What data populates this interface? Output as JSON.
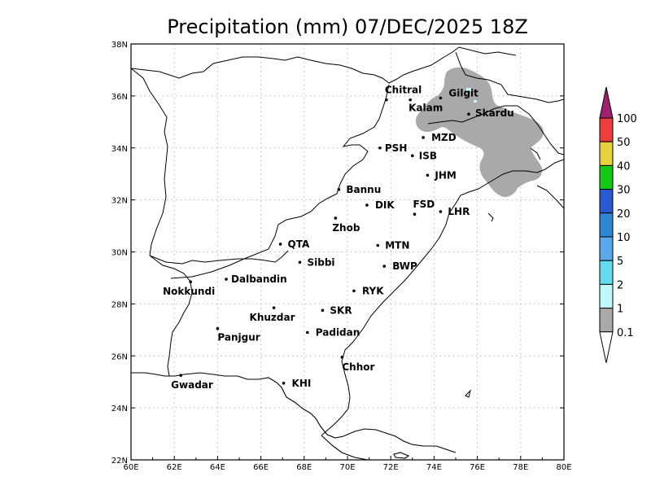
{
  "title": "Precipitation (mm) 07/DEC/2025 18Z",
  "colors": {
    "precip_shade": "#a9a9a9",
    "precip_light": "#bff9fb",
    "grid": "#b8b8b8"
  },
  "map": {
    "lon_range": [
      60,
      80
    ],
    "lat_range": [
      22,
      38
    ],
    "grid_step": 2,
    "grid": "dotted"
  },
  "x_ticks": [
    "60E",
    "62E",
    "64E",
    "66E",
    "68E",
    "70E",
    "72E",
    "74E",
    "76E",
    "78E",
    "80E"
  ],
  "y_ticks": [
    "22N",
    "24N",
    "26N",
    "28N",
    "30N",
    "32N",
    "34N",
    "36N",
    "38N"
  ],
  "cities": [
    {
      "name": "Chitral",
      "lon": 71.8,
      "lat": 35.85
    },
    {
      "name": "Gilgit",
      "lon": 74.3,
      "lat": 35.92
    },
    {
      "name": "Kalam",
      "lon": 72.9,
      "lat": 35.85
    },
    {
      "name": "Skardu",
      "lon": 75.6,
      "lat": 35.3
    },
    {
      "name": "MZD",
      "lon": 73.5,
      "lat": 34.4
    },
    {
      "name": "PSH",
      "lon": 71.5,
      "lat": 34.0
    },
    {
      "name": "ISB",
      "lon": 73.0,
      "lat": 33.7
    },
    {
      "name": "JHM",
      "lon": 73.7,
      "lat": 32.95
    },
    {
      "name": "Bannu",
      "lon": 69.6,
      "lat": 32.4
    },
    {
      "name": "DIK",
      "lon": 70.9,
      "lat": 31.8
    },
    {
      "name": "FSD",
      "lon": 73.1,
      "lat": 31.45
    },
    {
      "name": "LHR",
      "lon": 74.3,
      "lat": 31.55
    },
    {
      "name": "Zhob",
      "lon": 69.45,
      "lat": 31.3
    },
    {
      "name": "QTA",
      "lon": 66.9,
      "lat": 30.3
    },
    {
      "name": "MTN",
      "lon": 71.4,
      "lat": 30.25
    },
    {
      "name": "Sibbi",
      "lon": 67.8,
      "lat": 29.6
    },
    {
      "name": "BWP",
      "lon": 71.7,
      "lat": 29.45
    },
    {
      "name": "Nokkundi",
      "lon": 62.75,
      "lat": 28.85
    },
    {
      "name": "Dalbandin",
      "lon": 64.4,
      "lat": 28.95
    },
    {
      "name": "RYK",
      "lon": 70.3,
      "lat": 28.5
    },
    {
      "name": "Khuzdar",
      "lon": 66.6,
      "lat": 27.85
    },
    {
      "name": "SKR",
      "lon": 68.85,
      "lat": 27.75
    },
    {
      "name": "Panjgur",
      "lon": 64.0,
      "lat": 27.05
    },
    {
      "name": "Padidan",
      "lon": 68.15,
      "lat": 26.9
    },
    {
      "name": "Chhor",
      "lon": 69.75,
      "lat": 25.95
    },
    {
      "name": "Gwadar",
      "lon": 62.3,
      "lat": 25.25
    },
    {
      "name": "KHI",
      "lon": 67.05,
      "lat": 24.95
    }
  ],
  "colorbar": {
    "labels": [
      "100",
      "50",
      "40",
      "30",
      "20",
      "10",
      "5",
      "2",
      "1",
      "0.1"
    ],
    "colors": [
      "#a0206e",
      "#f03c3c",
      "#e6d23c",
      "#14c814",
      "#2a5ad2",
      "#2d87d6",
      "#5aaaeb",
      "#64dcf0",
      "#bff9fb",
      "#a9a9a9",
      "#ffffff"
    ]
  }
}
